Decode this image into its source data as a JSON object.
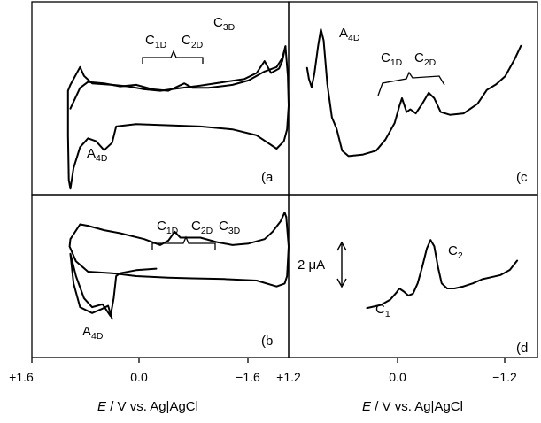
{
  "chart_data": [
    {
      "id": "a",
      "type": "line",
      "panel_label": "(a",
      "peak_labels": [
        {
          "main": "C",
          "sub": "1D"
        },
        {
          "main": "C",
          "sub": "2D"
        },
        {
          "main": "C",
          "sub": "3D"
        },
        {
          "main": "A",
          "sub": "4D"
        }
      ],
      "xlim": [
        1.6,
        -1.6
      ],
      "series": [
        {
          "values": [
            [
              1.12,
              -0.2
            ],
            [
              1.0,
              1.2
            ],
            [
              0.9,
              1.6
            ],
            [
              0.7,
              1.5
            ],
            [
              0.5,
              1.3
            ],
            [
              0.3,
              1.4
            ],
            [
              0.1,
              1.1
            ],
            [
              -0.1,
              1.0
            ],
            [
              -0.3,
              1.5
            ],
            [
              -0.4,
              1.2
            ],
            [
              -0.6,
              1.2
            ],
            [
              -0.9,
              1.4
            ],
            [
              -1.1,
              1.7
            ],
            [
              -1.3,
              2.3
            ],
            [
              -1.45,
              2.6
            ],
            [
              -1.52,
              3.2
            ],
            [
              -1.56,
              4.0
            ]
          ]
        },
        {
          "values": [
            [
              1.12,
              1.4
            ],
            [
              1.0,
              2.6
            ],
            [
              0.95,
              2.0
            ],
            [
              0.85,
              1.5
            ],
            [
              0.6,
              1.4
            ],
            [
              0.4,
              1.3
            ],
            [
              0.2,
              1.1
            ],
            [
              0.0,
              1.0
            ],
            [
              -0.2,
              1.15
            ],
            [
              -0.5,
              1.35
            ],
            [
              -0.8,
              1.6
            ],
            [
              -1.05,
              1.8
            ],
            [
              -1.2,
              2.2
            ],
            [
              -1.3,
              3.0
            ],
            [
              -1.38,
              2.2
            ],
            [
              -1.48,
              2.5
            ],
            [
              -1.52,
              3.0
            ],
            [
              -1.56,
              4.0
            ]
          ]
        },
        {
          "values": [
            [
              -1.56,
              4.0
            ],
            [
              -1.59,
              2.0
            ],
            [
              -1.6,
              0.0
            ],
            [
              -1.58,
              -1.6
            ],
            [
              -1.54,
              -2.4
            ],
            [
              -1.45,
              -2.9
            ],
            [
              -1.2,
              -2.0
            ],
            [
              -0.9,
              -1.6
            ],
            [
              -0.5,
              -1.4
            ],
            [
              0.0,
              -1.3
            ],
            [
              0.3,
              -1.25
            ],
            [
              0.55,
              -1.4
            ],
            [
              0.6,
              -2.5
            ],
            [
              0.7,
              -3.0
            ],
            [
              0.8,
              -2.4
            ],
            [
              0.9,
              -2.2
            ],
            [
              1.0,
              -2.8
            ],
            [
              1.08,
              -4.2
            ],
            [
              1.12,
              -5.6
            ],
            [
              1.14,
              -5.0
            ],
            [
              1.15,
              -2.0
            ],
            [
              1.15,
              1.0
            ],
            [
              1.12,
              1.4
            ]
          ]
        }
      ]
    },
    {
      "id": "b",
      "type": "line",
      "panel_label": "(b",
      "peak_labels": [
        {
          "main": "C",
          "sub": "1D"
        },
        {
          "main": "C",
          "sub": "2D"
        },
        {
          "main": "C",
          "sub": "3D"
        },
        {
          "main": "A",
          "sub": "4D"
        }
      ],
      "xlim": [
        1.6,
        -1.6
      ],
      "x_ticks": [
        "+1.6",
        "0.0",
        "−1.6"
      ],
      "x_axis_title": {
        "italic": "E",
        "rest": " / V vs. Ag|AgCl"
      },
      "series": [
        {
          "values": [
            [
              1.12,
              2.0
            ],
            [
              1.0,
              3.0
            ],
            [
              0.9,
              2.9
            ],
            [
              0.7,
              2.6
            ],
            [
              0.5,
              2.4
            ],
            [
              0.2,
              2.0
            ],
            [
              0.0,
              1.6
            ],
            [
              -0.1,
              1.9
            ],
            [
              -0.18,
              2.5
            ],
            [
              -0.25,
              2.1
            ],
            [
              -0.5,
              2.1
            ],
            [
              -0.7,
              1.8
            ],
            [
              -0.9,
              1.6
            ],
            [
              -1.1,
              1.7
            ],
            [
              -1.3,
              2.0
            ],
            [
              -1.4,
              2.5
            ],
            [
              -1.5,
              3.2
            ],
            [
              -1.55,
              3.8
            ],
            [
              -1.57,
              3.5
            ]
          ]
        },
        {
          "values": [
            [
              -1.57,
              3.5
            ],
            [
              -1.6,
              1.5
            ],
            [
              -1.58,
              -0.5
            ],
            [
              -1.55,
              -1.0
            ],
            [
              -1.45,
              -1.2
            ],
            [
              -1.2,
              -0.8
            ],
            [
              -0.8,
              -0.7
            ],
            [
              -0.4,
              -0.65
            ],
            [
              -0.1,
              -0.6
            ],
            [
              0.3,
              -0.5
            ],
            [
              0.6,
              -0.3
            ],
            [
              0.9,
              -0.2
            ],
            [
              1.05,
              0.5
            ],
            [
              1.13,
              1.5
            ],
            [
              1.12,
              2.0
            ]
          ]
        },
        {
          "values": [
            [
              1.12,
              1.0
            ],
            [
              1.05,
              -0.5
            ],
            [
              0.95,
              -2.0
            ],
            [
              0.85,
              -2.6
            ],
            [
              0.72,
              -2.4
            ],
            [
              0.62,
              -3.2
            ],
            [
              0.58,
              -2.0
            ],
            [
              0.55,
              -0.5
            ],
            [
              0.5,
              -0.3
            ],
            [
              0.3,
              -0.1
            ],
            [
              0.05,
              0.0
            ]
          ]
        },
        {
          "values": [
            [
              1.12,
              1.0
            ],
            [
              1.08,
              -1.0
            ],
            [
              1.0,
              -2.6
            ],
            [
              0.85,
              -3.0
            ],
            [
              0.72,
              -2.7
            ],
            [
              0.65,
              -2.5
            ],
            [
              0.6,
              -3.4
            ]
          ]
        }
      ]
    },
    {
      "id": "c",
      "type": "line",
      "panel_label": "(c",
      "peak_labels": [
        {
          "main": "A",
          "sub": "4D"
        },
        {
          "main": "C",
          "sub": "1D"
        },
        {
          "main": "C",
          "sub": "2D"
        }
      ],
      "xlim": [
        1.2,
        -1.5
      ],
      "series": [
        {
          "values": [
            [
              1.0,
              4.6
            ],
            [
              0.98,
              4.2
            ],
            [
              0.95,
              3.9
            ],
            [
              0.92,
              4.4
            ],
            [
              0.88,
              5.4
            ],
            [
              0.85,
              6.0
            ],
            [
              0.82,
              5.6
            ],
            [
              0.78,
              4.0
            ],
            [
              0.73,
              2.8
            ],
            [
              0.68,
              2.4
            ],
            [
              0.62,
              1.6
            ],
            [
              0.55,
              1.4
            ],
            [
              0.4,
              1.45
            ],
            [
              0.25,
              1.6
            ],
            [
              0.15,
              2.0
            ],
            [
              0.05,
              2.6
            ],
            [
              0.0,
              3.2
            ],
            [
              -0.03,
              3.5
            ],
            [
              -0.08,
              3.0
            ],
            [
              -0.12,
              3.1
            ],
            [
              -0.18,
              2.95
            ],
            [
              -0.25,
              3.3
            ],
            [
              -0.32,
              3.7
            ],
            [
              -0.38,
              3.5
            ],
            [
              -0.45,
              3.0
            ],
            [
              -0.55,
              2.9
            ],
            [
              -0.7,
              2.95
            ],
            [
              -0.85,
              3.3
            ],
            [
              -0.95,
              3.8
            ],
            [
              -1.05,
              4.0
            ],
            [
              -1.15,
              4.3
            ],
            [
              -1.25,
              4.9
            ],
            [
              -1.32,
              5.4
            ]
          ]
        }
      ]
    },
    {
      "id": "d",
      "type": "line",
      "panel_label": "(d",
      "peak_labels": [
        {
          "main": "C",
          "sub": "1"
        },
        {
          "main": "C",
          "sub": "2"
        }
      ],
      "xlim": [
        1.2,
        -1.5
      ],
      "x_ticks": [
        "+1.2",
        "0.0",
        "−1.2"
      ],
      "x_axis_title": {
        "italic": "E",
        "rest": " / V vs. Ag|AgCl"
      },
      "scale_bar_label": "2 μA",
      "series": [
        {
          "values": [
            [
              0.35,
              0.0
            ],
            [
              0.2,
              0.15
            ],
            [
              0.1,
              0.4
            ],
            [
              0.03,
              0.75
            ],
            [
              0.0,
              0.95
            ],
            [
              -0.05,
              0.8
            ],
            [
              -0.1,
              0.6
            ],
            [
              -0.15,
              0.7
            ],
            [
              -0.2,
              1.2
            ],
            [
              -0.25,
              2.0
            ],
            [
              -0.3,
              2.9
            ],
            [
              -0.34,
              3.3
            ],
            [
              -0.38,
              3.0
            ],
            [
              -0.42,
              2.0
            ],
            [
              -0.46,
              1.2
            ],
            [
              -0.52,
              0.95
            ],
            [
              -0.6,
              0.95
            ],
            [
              -0.7,
              1.05
            ],
            [
              -0.8,
              1.2
            ],
            [
              -0.9,
              1.4
            ],
            [
              -1.0,
              1.5
            ],
            [
              -1.1,
              1.6
            ],
            [
              -1.2,
              1.85
            ],
            [
              -1.28,
              2.3
            ]
          ]
        }
      ]
    }
  ]
}
